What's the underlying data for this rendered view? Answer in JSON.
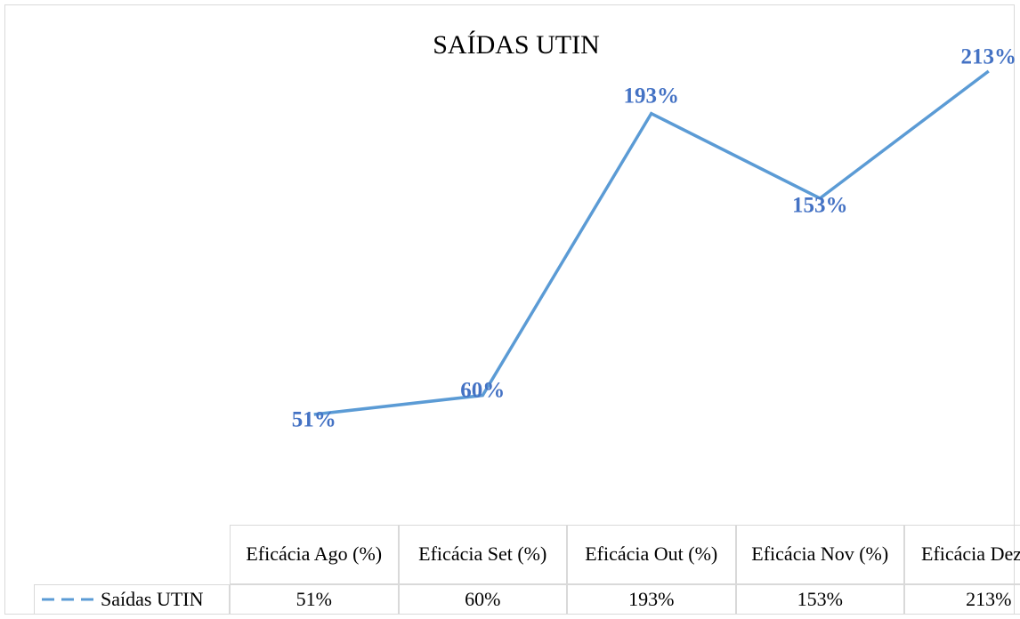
{
  "chart_data": {
    "type": "line",
    "title": "SAÍDAS UTIN",
    "categories": [
      "Eficácia Ago (%)",
      "Eficácia Set (%)",
      "Eficácia Out (%)",
      "Eficácia Nov (%)",
      "Eficácia Dez (%)"
    ],
    "series": [
      {
        "name": "Saídas UTIN",
        "color": "#5b9bd5",
        "values": [
          51,
          60,
          193,
          153,
          213
        ],
        "value_labels": [
          "51%",
          "60%",
          "193%",
          "153%",
          "213%"
        ]
      }
    ]
  }
}
